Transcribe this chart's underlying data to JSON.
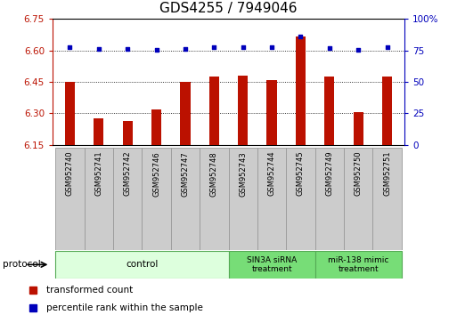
{
  "title": "GDS4255 / 7949046",
  "samples": [
    "GSM952740",
    "GSM952741",
    "GSM952742",
    "GSM952746",
    "GSM952747",
    "GSM952748",
    "GSM952743",
    "GSM952744",
    "GSM952745",
    "GSM952749",
    "GSM952750",
    "GSM952751"
  ],
  "bar_values": [
    6.45,
    6.275,
    6.265,
    6.32,
    6.45,
    6.475,
    6.48,
    6.46,
    6.665,
    6.475,
    6.305,
    6.475
  ],
  "dot_values": [
    6.615,
    6.605,
    6.607,
    6.604,
    6.607,
    6.617,
    6.616,
    6.614,
    6.665,
    6.612,
    6.604,
    6.614
  ],
  "ylim_left": [
    6.15,
    6.75
  ],
  "ylim_right": [
    0,
    100
  ],
  "yticks_left": [
    6.15,
    6.3,
    6.45,
    6.6,
    6.75
  ],
  "yticks_right": [
    0,
    25,
    50,
    75,
    100
  ],
  "grid_values": [
    6.3,
    6.45,
    6.6
  ],
  "bar_color": "#bb1100",
  "dot_color": "#0000bb",
  "bar_bottom": 6.15,
  "protocol_groups": [
    {
      "label": "control",
      "start": 0,
      "end": 5,
      "color": "#ddffdd",
      "edge_color": "#55aa55"
    },
    {
      "label": "SIN3A siRNA\ntreatment",
      "start": 6,
      "end": 8,
      "color": "#77dd77",
      "edge_color": "#55aa55"
    },
    {
      "label": "miR-138 mimic\ntreatment",
      "start": 9,
      "end": 11,
      "color": "#77dd77",
      "edge_color": "#55aa55"
    }
  ],
  "protocol_label": "protocol",
  "legend_items": [
    {
      "label": "transformed count",
      "color": "#bb1100"
    },
    {
      "label": "percentile rank within the sample",
      "color": "#0000bb"
    }
  ],
  "title_fontsize": 11,
  "tick_fontsize": 7.5,
  "background_color": "#ffffff"
}
